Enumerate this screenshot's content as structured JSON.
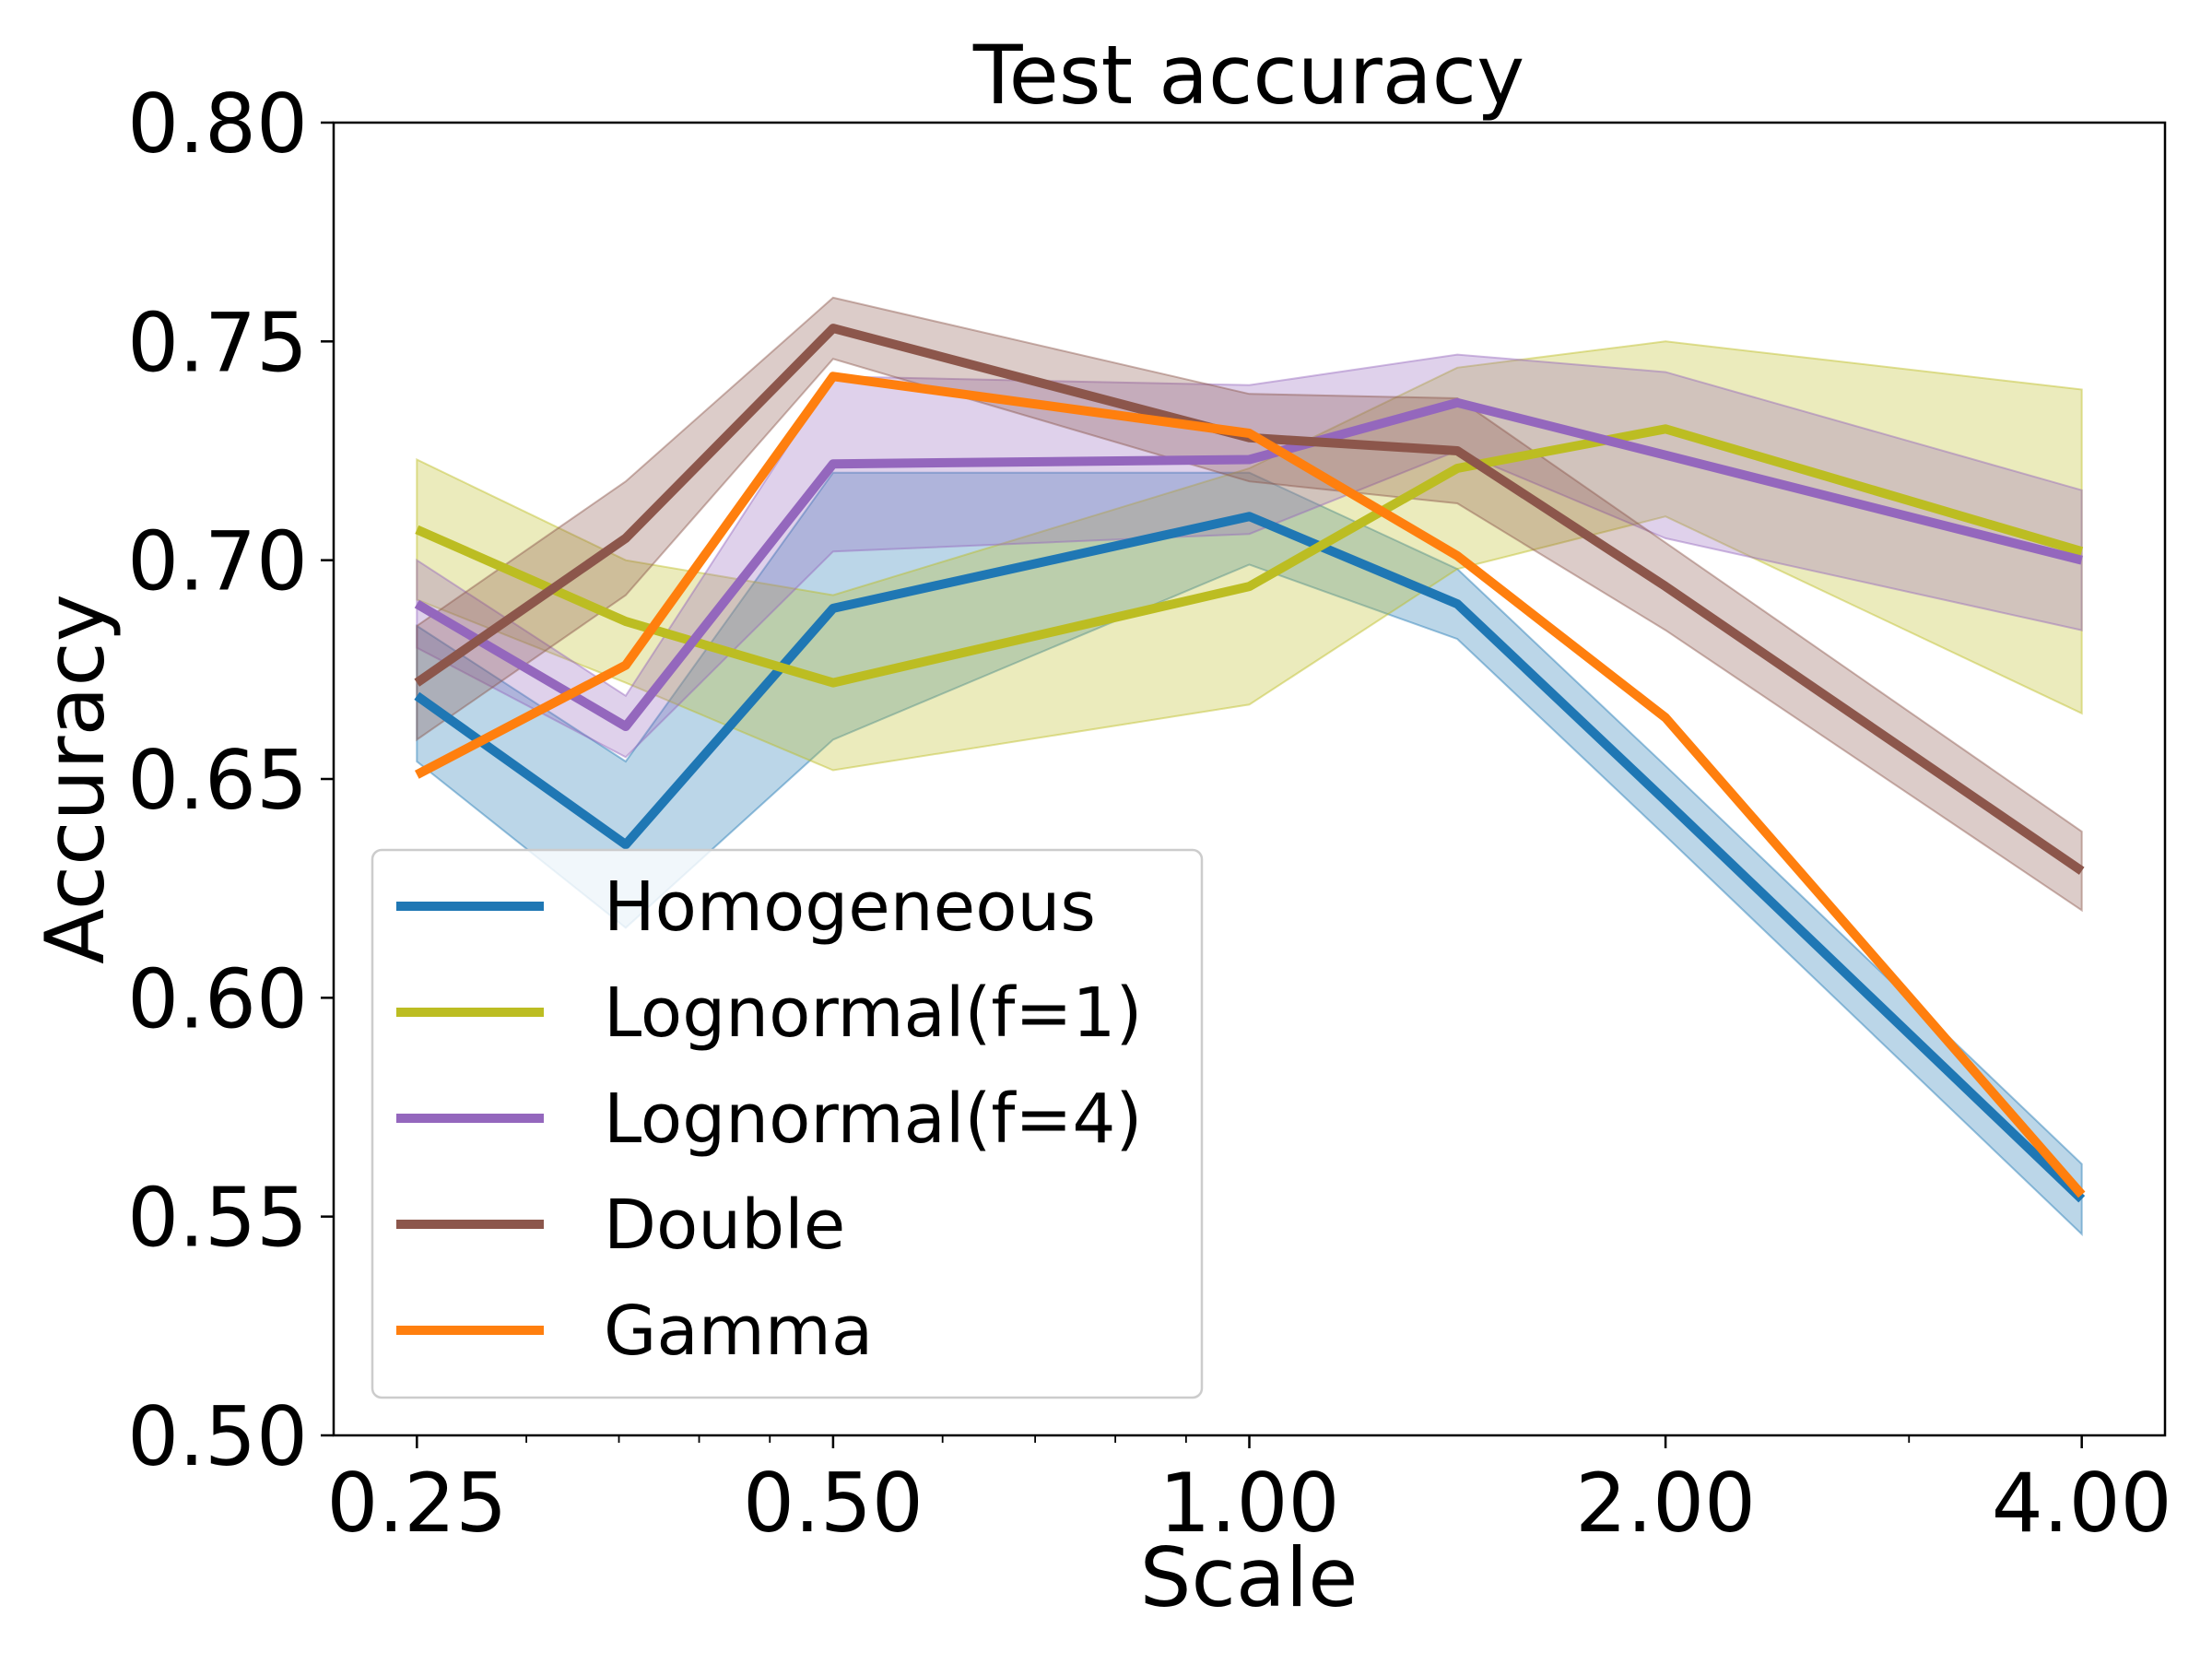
{
  "chart_data": {
    "type": "line",
    "title": "Test accuracy",
    "xlabel": "Scale",
    "ylabel": "Accuracy",
    "x_scale": "log2",
    "x": [
      0.25,
      0.354,
      0.5,
      1.0,
      1.414,
      2.0,
      4.0
    ],
    "xticks": [
      0.25,
      0.5,
      1.0,
      2.0,
      4.0
    ],
    "xtick_labels": [
      "0.25",
      "0.50",
      "1.00",
      "2.00",
      "4.00"
    ],
    "ylim": [
      0.5,
      0.8
    ],
    "yticks": [
      0.5,
      0.55,
      0.6,
      0.65,
      0.7,
      0.75,
      0.8
    ],
    "ytick_labels": [
      "0.50",
      "0.55",
      "0.60",
      "0.65",
      "0.70",
      "0.75",
      "0.80"
    ],
    "grid": false,
    "legend_position": "lower-left",
    "series": [
      {
        "name": "Homogeneous",
        "color": "#1f77b4",
        "values": [
          0.669,
          0.635,
          0.689,
          0.71,
          0.69,
          0.645,
          0.554
        ],
        "lower": [
          0.654,
          0.616,
          0.659,
          0.699,
          0.682,
          0.637,
          0.546
        ],
        "upper": [
          0.685,
          0.654,
          0.72,
          0.72,
          0.698,
          0.653,
          0.562
        ]
      },
      {
        "name": "Lognormal(f=1)",
        "color": "#bcbd22",
        "values": [
          0.707,
          0.686,
          0.672,
          0.694,
          0.721,
          0.73,
          0.702
        ],
        "lower": [
          0.691,
          0.672,
          0.652,
          0.667,
          0.698,
          0.71,
          0.665
        ],
        "upper": [
          0.723,
          0.7,
          0.692,
          0.721,
          0.744,
          0.75,
          0.739
        ]
      },
      {
        "name": "Lognormal(f=4)",
        "color": "#9467bd",
        "values": [
          0.69,
          0.662,
          0.722,
          0.723,
          0.736,
          0.724,
          0.7
        ],
        "lower": [
          0.68,
          0.655,
          0.702,
          0.706,
          0.725,
          0.705,
          0.684
        ],
        "upper": [
          0.7,
          0.669,
          0.742,
          0.74,
          0.747,
          0.743,
          0.716
        ]
      },
      {
        "name": "Double",
        "color": "#8c564b",
        "values": [
          0.672,
          0.705,
          0.753,
          0.728,
          0.725,
          0.694,
          0.629
        ],
        "lower": [
          0.659,
          0.692,
          0.746,
          0.718,
          0.713,
          0.684,
          0.62
        ],
        "upper": [
          0.685,
          0.718,
          0.76,
          0.738,
          0.737,
          0.704,
          0.638
        ]
      },
      {
        "name": "Gamma",
        "color": "#ff7f0e",
        "values": [
          0.651,
          0.676,
          0.742,
          0.729,
          0.701,
          0.664,
          0.555
        ]
      }
    ]
  }
}
